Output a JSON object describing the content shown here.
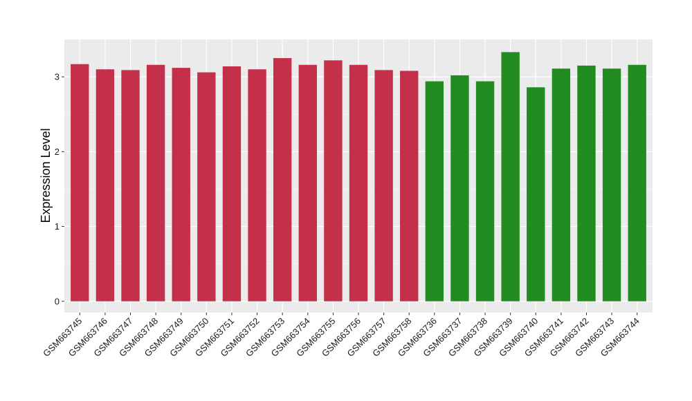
{
  "chart_data": {
    "type": "bar",
    "ylabel": "Expression Level",
    "xlabel": "",
    "ylim": [
      -0.15,
      3.5
    ],
    "yticks": [
      0,
      1,
      2,
      3
    ],
    "grid": true,
    "legend": "none",
    "panel_background": "#ebebeb",
    "categories": [
      "GSM663745",
      "GSM663746",
      "GSM663747",
      "GSM663748",
      "GSM663749",
      "GSM663750",
      "GSM663751",
      "GSM663752",
      "GSM663753",
      "GSM663754",
      "GSM663755",
      "GSM663756",
      "GSM663757",
      "GSM663758",
      "GSM663736",
      "GSM663737",
      "GSM663738",
      "GSM663739",
      "GSM663740",
      "GSM663741",
      "GSM663742",
      "GSM663743",
      "GSM663744"
    ],
    "values": [
      3.17,
      3.1,
      3.09,
      3.16,
      3.12,
      3.06,
      3.14,
      3.1,
      3.25,
      3.16,
      3.22,
      3.16,
      3.09,
      3.08,
      2.94,
      3.02,
      2.94,
      3.33,
      2.86,
      3.11,
      3.15,
      3.11,
      3.16
    ],
    "groups": [
      "a",
      "a",
      "a",
      "a",
      "a",
      "a",
      "a",
      "a",
      "a",
      "a",
      "a",
      "a",
      "a",
      "a",
      "b",
      "b",
      "b",
      "b",
      "b",
      "b",
      "b",
      "b",
      "b"
    ],
    "group_colors": {
      "a": "#c43049",
      "b": "#228b22"
    }
  }
}
